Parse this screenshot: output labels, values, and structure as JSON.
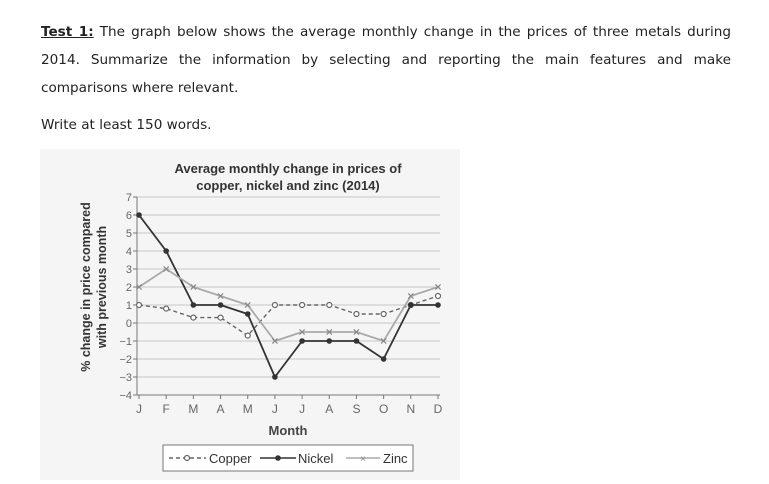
{
  "prompt": {
    "label": "Test 1:",
    "text": " The graph below shows the average monthly change in the prices of three metals during 2014. Summarize the information by selecting and reporting the main features and make comparisons where relevant.",
    "instruction": "Write at least 150 words."
  },
  "chart_data": {
    "type": "line",
    "title_line1": "Average monthly change in prices of",
    "title_line2": "copper, nickel and zinc (2014)",
    "xlabel": "Month",
    "ylabel_line1": "% change in price compared",
    "ylabel_line2": "with previous month",
    "categories": [
      "J",
      "F",
      "M",
      "A",
      "M",
      "J",
      "J",
      "A",
      "S",
      "O",
      "N",
      "D"
    ],
    "ylim": [
      -4,
      7
    ],
    "yticks": [
      "7",
      "6",
      "5",
      "4",
      "3",
      "2",
      "1",
      "0",
      "−1",
      "−2",
      "−3",
      "−4"
    ],
    "grid": true,
    "legend_position": "bottom",
    "series": [
      {
        "name": "Copper",
        "values": [
          1.0,
          0.8,
          0.3,
          0.3,
          -0.7,
          1.0,
          1.0,
          1.0,
          0.5,
          0.5,
          1.0,
          1.5
        ],
        "color": "#666666",
        "style": "dashed",
        "marker": "circle"
      },
      {
        "name": "Nickel",
        "values": [
          6.0,
          4.0,
          1.0,
          1.0,
          0.5,
          -3.0,
          -1.0,
          -1.0,
          -1.0,
          -2.0,
          1.0,
          1.0
        ],
        "color": "#333333",
        "style": "solid",
        "marker": "dot"
      },
      {
        "name": "Zinc",
        "values": [
          2.0,
          3.0,
          2.0,
          1.5,
          1.0,
          -1.0,
          -0.5,
          -0.5,
          -0.5,
          -1.0,
          1.5,
          2.0
        ],
        "color": "#aaaaaa",
        "style": "solid",
        "marker": "x"
      }
    ]
  }
}
